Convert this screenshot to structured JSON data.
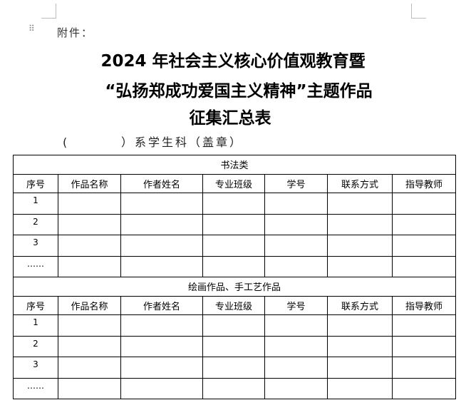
{
  "attachment_label": "附件：",
  "title": {
    "line1": "2024 年社会主义核心价值观教育暨",
    "line2": "“弘扬郑成功爱国主义精神”主题作品",
    "line3": "征集汇总表"
  },
  "department_line": "(         ）系学生科（盖章）",
  "columns": [
    "序号",
    "作品名称",
    "作者姓名",
    "专业班级",
    "学号",
    "联系方式",
    "指导教师"
  ],
  "sections": [
    {
      "title": "书法类",
      "rows": [
        "1",
        "2",
        "3",
        "……"
      ]
    },
    {
      "title": "绘画作品、手工艺作品",
      "rows": [
        "1",
        "2",
        "3",
        "……"
      ]
    }
  ]
}
